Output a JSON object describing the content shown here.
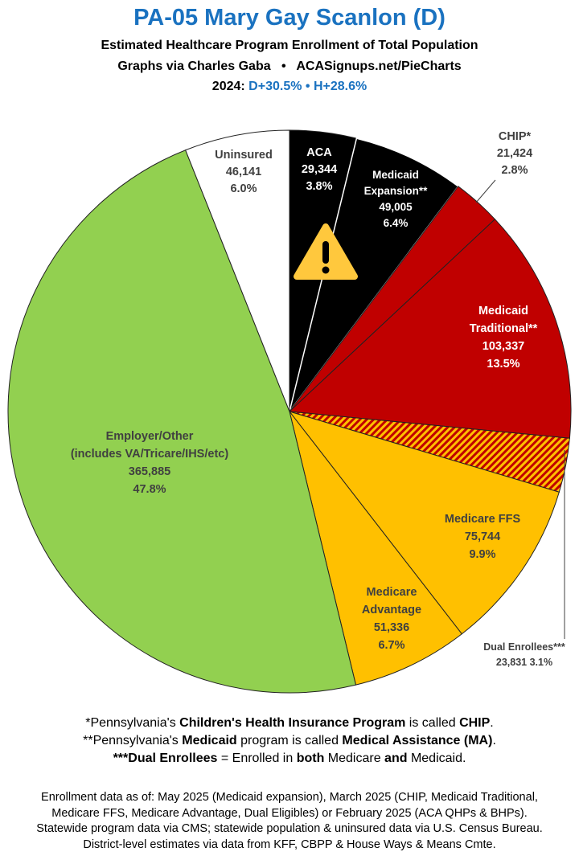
{
  "header": {
    "title": "PA-05 Mary Gay Scanlon (D)",
    "subtitle": "Estimated Healthcare Program Enrollment of Total Population",
    "credit_left": "Graphs via Charles Gaba",
    "credit_sep": "•",
    "credit_right": "ACASignups.net/PieCharts",
    "year_label": "2024:",
    "d_margin": "D+30.5%",
    "h_margin": "H+28.6%"
  },
  "chart_data": {
    "type": "pie",
    "title": "PA-05 Mary Gay Scanlon (D)",
    "start": "12 o'clock, clockwise",
    "slices": [
      {
        "name": "ACA",
        "value": 29344,
        "percent": "3.8%",
        "color": "#000000"
      },
      {
        "name": "Medicaid Expansion**",
        "value": 49005,
        "percent": "6.4%",
        "color": "#000000"
      },
      {
        "name": "CHIP*",
        "value": 21424,
        "percent": "2.8%",
        "color": "#c00000"
      },
      {
        "name": "Medicaid Traditional**",
        "value": 103337,
        "percent": "13.5%",
        "color": "#c00000"
      },
      {
        "name": "Dual Enrollees***",
        "value": 23831,
        "percent": "3.1%",
        "color": "hatched #c00000/#ffc000"
      },
      {
        "name": "Medicare FFS",
        "value": 75744,
        "percent": "9.9%",
        "color": "#ffc000"
      },
      {
        "name": "Medicare Advantage",
        "value": 51336,
        "percent": "6.7%",
        "color": "#ffc000"
      },
      {
        "name": "Employer/Other (includes VA/Tricare/IHS/etc)",
        "value": 365885,
        "percent": "47.8%",
        "color": "#92d050"
      },
      {
        "name": "Uninsured",
        "value": 46141,
        "percent": "6.0%",
        "color": "#ffffff"
      }
    ]
  },
  "labels": {
    "aca": [
      "ACA",
      "29,344",
      "3.8%"
    ],
    "exp": [
      "Medicaid",
      "Expansion**",
      "49,005",
      "6.4%"
    ],
    "chip": [
      "CHIP*",
      "21,424",
      "2.8%"
    ],
    "trad": [
      "Medicaid",
      "Traditional**",
      "103,337",
      "13.5%"
    ],
    "dual": [
      "Dual Enrollees***",
      "23,831 3.1%"
    ],
    "ffs": [
      "Medicare FFS",
      "75,744",
      "9.9%"
    ],
    "ma": [
      "Medicare",
      "Advantage",
      "51,336",
      "6.7%"
    ],
    "emp": [
      "Employer/Other",
      "(includes VA/Tricare/IHS/etc)",
      "365,885",
      "47.8%"
    ],
    "unins": [
      "Uninsured",
      "46,141",
      "6.0%"
    ]
  },
  "footnotes": {
    "f1": [
      "*Pennsylvania's ",
      "Children's Health Insurance Program",
      " is called ",
      "CHIP",
      "."
    ],
    "f2": [
      "**Pennsylvania's ",
      "Medicaid",
      " program is called ",
      "Medical Assistance (MA)",
      "."
    ],
    "f3": [
      "***Dual Enrollees",
      " = Enrolled in ",
      "both",
      " Medicare ",
      "and",
      " Medicaid."
    ]
  },
  "sources": [
    "Enrollment data as of: May 2025 (Medicaid expansion), March 2025 (CHIP, Medicaid Traditional,",
    "Medicare FFS, Medicare Advantage, Dual Eligibles) or February 2025 (ACA QHPs & BHPs).",
    "Statewide program data via CMS; statewide population & uninsured data via U.S. Census Bureau.",
    "District-level estimates via data from KFF, CBPP & House Ways & Means Cmte."
  ]
}
